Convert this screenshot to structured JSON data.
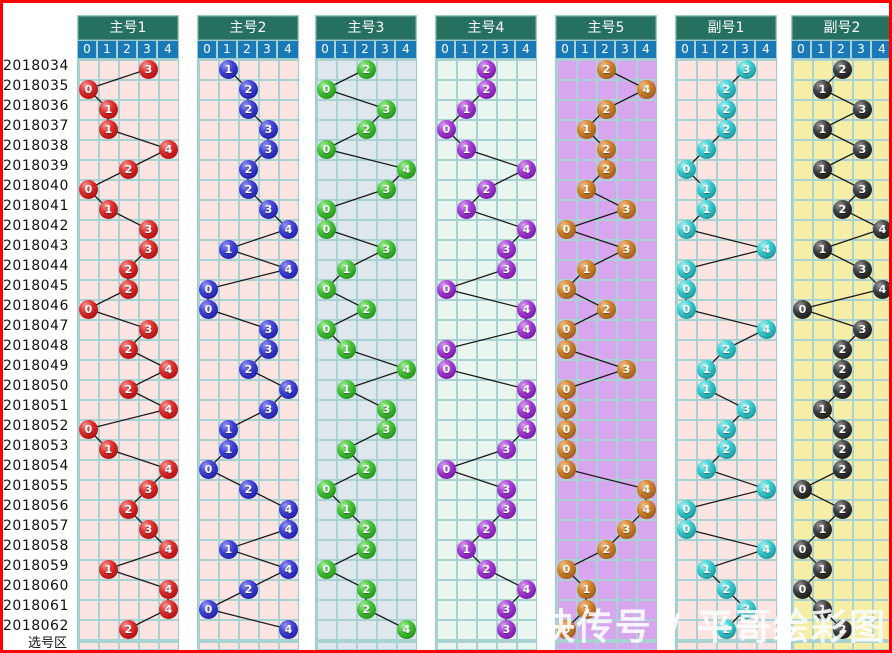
{
  "colors": {
    "frame_border": "#ff0000",
    "group_header_bg": "#26705f",
    "subheader_bg": "#1a7ab8",
    "grid_line": "#a9d2d2",
    "header_text": "#ffffff"
  },
  "chart_data": {
    "type": "line",
    "title": "",
    "xlabel": "",
    "ylabel": "",
    "categories": [
      "2018034",
      "2018035",
      "2018036",
      "2018037",
      "2018038",
      "2018039",
      "2018040",
      "2018041",
      "2018042",
      "2018043",
      "2018044",
      "2018045",
      "2018046",
      "2018047",
      "2018048",
      "2018049",
      "2018050",
      "2018051",
      "2018052",
      "2018053",
      "2018054",
      "2018055",
      "2018056",
      "2018057",
      "2018058",
      "2018059",
      "2018060",
      "2018061",
      "2018062"
    ],
    "columns": [
      "0",
      "1",
      "2",
      "3",
      "4"
    ],
    "series": [
      {
        "name": "主号1",
        "ball": "red",
        "ball_color": "#cf2a2a",
        "bg": "#fce4e3",
        "values": [
          3,
          0,
          1,
          1,
          4,
          2,
          0,
          1,
          3,
          3,
          2,
          2,
          0,
          3,
          2,
          4,
          2,
          4,
          0,
          1,
          4,
          3,
          2,
          3,
          4,
          1,
          4,
          4,
          2
        ]
      },
      {
        "name": "主号2",
        "ball": "blue",
        "ball_color": "#3c3ccd",
        "bg": "#fce4e3",
        "values": [
          1,
          2,
          2,
          3,
          3,
          2,
          2,
          3,
          4,
          1,
          4,
          0,
          0,
          3,
          3,
          2,
          4,
          3,
          1,
          1,
          0,
          2,
          4,
          4,
          1,
          4,
          2,
          0,
          4
        ]
      },
      {
        "name": "主号3",
        "ball": "green",
        "ball_color": "#3eb834",
        "bg": "#dde7ec",
        "values": [
          2,
          0,
          3,
          2,
          0,
          4,
          3,
          0,
          0,
          3,
          1,
          0,
          2,
          0,
          1,
          4,
          1,
          3,
          3,
          1,
          2,
          0,
          1,
          2,
          2,
          0,
          2,
          2,
          4
        ]
      },
      {
        "name": "主号4",
        "ball": "purple",
        "ball_color": "#9a35cf",
        "bg": "#e9f6ef",
        "values": [
          2,
          2,
          1,
          0,
          1,
          4,
          2,
          1,
          4,
          3,
          3,
          0,
          4,
          4,
          0,
          0,
          4,
          4,
          4,
          3,
          0,
          3,
          3,
          2,
          1,
          2,
          4,
          3,
          3
        ]
      },
      {
        "name": "主号5",
        "ball": "orange",
        "ball_color": "#cd7c2f",
        "bg": "#d8a5ef",
        "values": [
          2,
          4,
          2,
          1,
          2,
          2,
          1,
          3,
          0,
          3,
          1,
          0,
          2,
          0,
          0,
          3,
          0,
          0,
          0,
          0,
          0,
          4,
          4,
          3,
          2,
          0,
          1,
          1,
          0
        ]
      },
      {
        "name": "副号1",
        "ball": "cyan",
        "ball_color": "#35c4c8",
        "bg": "#fce4e3",
        "values": [
          3,
          2,
          2,
          2,
          1,
          0,
          1,
          1,
          0,
          4,
          0,
          0,
          0,
          4,
          2,
          1,
          1,
          3,
          2,
          2,
          1,
          4,
          0,
          0,
          4,
          1,
          2,
          3,
          2
        ]
      },
      {
        "name": "副号2",
        "ball": "black",
        "ball_color": "#303030",
        "bg": "#f6eda6",
        "values": [
          2,
          1,
          3,
          1,
          3,
          1,
          3,
          2,
          4,
          1,
          3,
          4,
          0,
          3,
          2,
          2,
          2,
          1,
          2,
          2,
          2,
          0,
          2,
          1,
          0,
          1,
          0,
          1,
          2
        ]
      }
    ]
  },
  "selection_label": "选号区",
  "watermark": "快传号 / 平哥绘彩图"
}
